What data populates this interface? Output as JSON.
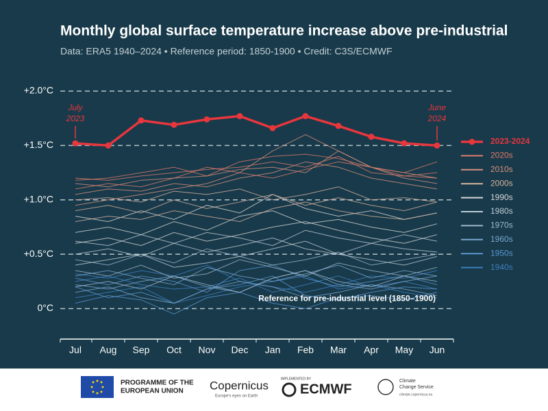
{
  "chart_data": {
    "type": "line",
    "title": "Monthly global surface temperature increase above pre-industrial",
    "subtitle": "Data: ERA5 1940–2024  •  Reference period: 1850-1900  •  Credit: C3S/ECMWF",
    "categories": [
      "Jul",
      "Aug",
      "Sep",
      "Oct",
      "Nov",
      "Dec",
      "Jan",
      "Feb",
      "Mar",
      "Apr",
      "May",
      "Jun"
    ],
    "ylim": [
      -0.28,
      2.0
    ],
    "yticks": [
      {
        "value": 2.0,
        "label": "+2.0°C"
      },
      {
        "value": 1.5,
        "label": "+1.5°C"
      },
      {
        "value": 1.0,
        "label": "+1.0°C"
      },
      {
        "value": 0.5,
        "label": "+0.5°C"
      },
      {
        "value": 0,
        "label": "0°C"
      }
    ],
    "grid": true,
    "legend": "right",
    "annotations": {
      "start": [
        "July",
        "2023"
      ],
      "end": [
        "June",
        "2024"
      ],
      "reference": "Reference for pre-industrial level (1850–1900)"
    },
    "series": [
      {
        "name": "2023-2024",
        "color": "#e8363d",
        "values": [
          1.52,
          1.5,
          1.73,
          1.69,
          1.74,
          1.77,
          1.66,
          1.77,
          1.68,
          1.58,
          1.52,
          1.5
        ]
      },
      {
        "name": "2020s",
        "color": "#e07a6a",
        "lines": [
          [
            1.2,
            1.18,
            1.22,
            1.25,
            1.28,
            1.3,
            1.35,
            1.3,
            1.4,
            1.25,
            1.22,
            1.2
          ],
          [
            1.1,
            1.15,
            1.12,
            1.2,
            1.3,
            1.25,
            1.2,
            1.28,
            1.35,
            1.3,
            1.25,
            1.35
          ],
          [
            1.18,
            1.2,
            1.25,
            1.3,
            1.22,
            1.35,
            1.4,
            1.42,
            1.38,
            1.3,
            1.22,
            1.25
          ]
        ]
      },
      {
        "name": "2010s",
        "color": "#d9917f",
        "lines": [
          [
            1.05,
            1.1,
            1.08,
            1.15,
            1.12,
            1.2,
            1.25,
            1.35,
            1.3,
            1.2,
            1.15,
            1.1
          ],
          [
            0.95,
            1.0,
            1.05,
            1.1,
            1.15,
            1.25,
            1.45,
            1.6,
            1.45,
            1.3,
            1.2,
            1.15
          ],
          [
            1.15,
            1.12,
            1.18,
            1.2,
            1.22,
            1.28,
            1.3,
            1.25,
            1.45,
            1.3,
            1.25,
            1.2
          ]
        ]
      },
      {
        "name": "2000s",
        "color": "#d8b3a0",
        "lines": [
          [
            0.9,
            0.95,
            0.88,
            1.0,
            0.92,
            0.98,
            1.05,
            0.95,
            1.02,
            0.95,
            0.9,
            0.98
          ],
          [
            0.8,
            0.85,
            0.82,
            0.9,
            0.85,
            0.8,
            0.92,
            0.98,
            0.9,
            0.85,
            0.82,
            0.88
          ],
          [
            1.0,
            1.02,
            0.98,
            1.08,
            1.05,
            1.1,
            1.0,
            1.05,
            1.12,
            1.0,
            1.02,
            0.98
          ]
        ]
      },
      {
        "name": "1990s",
        "color": "#d8d8d8",
        "lines": [
          [
            0.7,
            0.75,
            0.68,
            0.8,
            0.72,
            0.85,
            0.9,
            0.78,
            0.82,
            0.75,
            0.7,
            0.78
          ],
          [
            0.6,
            0.65,
            0.58,
            0.7,
            0.62,
            0.68,
            0.75,
            0.8,
            0.72,
            0.65,
            0.6,
            0.68
          ],
          [
            0.85,
            0.8,
            0.9,
            0.82,
            0.95,
            0.88,
            1.05,
            0.92,
            0.85,
            0.9,
            0.82,
            0.88
          ]
        ]
      },
      {
        "name": "1980s",
        "color": "#c0ccd6",
        "lines": [
          [
            0.5,
            0.55,
            0.48,
            0.6,
            0.52,
            0.58,
            0.65,
            0.55,
            0.5,
            0.6,
            0.55,
            0.52
          ],
          [
            0.4,
            0.45,
            0.5,
            0.38,
            0.42,
            0.48,
            0.55,
            0.62,
            0.5,
            0.45,
            0.4,
            0.48
          ],
          [
            0.62,
            0.58,
            0.68,
            0.6,
            0.7,
            0.65,
            0.58,
            0.72,
            0.65,
            0.6,
            0.68,
            0.62
          ]
        ]
      },
      {
        "name": "1970s",
        "color": "#9fb9cf",
        "lines": [
          [
            0.35,
            0.3,
            0.4,
            0.28,
            0.32,
            0.45,
            0.38,
            0.3,
            0.42,
            0.35,
            0.3,
            0.38
          ],
          [
            0.2,
            0.25,
            0.18,
            0.3,
            0.22,
            0.15,
            0.28,
            0.35,
            0.25,
            0.2,
            0.3,
            0.25
          ],
          [
            0.45,
            0.4,
            0.5,
            0.42,
            0.55,
            0.48,
            0.4,
            0.45,
            0.52,
            0.4,
            0.45,
            0.5
          ]
        ]
      },
      {
        "name": "1960s",
        "color": "#7aa7cf",
        "lines": [
          [
            0.22,
            0.18,
            0.25,
            0.3,
            0.2,
            0.15,
            0.28,
            0.35,
            0.22,
            0.18,
            0.25,
            0.3
          ],
          [
            0.15,
            0.2,
            0.1,
            0.05,
            0.18,
            0.25,
            0.2,
            0.1,
            0.15,
            0.22,
            0.18,
            0.12
          ],
          [
            0.3,
            0.35,
            0.28,
            0.22,
            0.38,
            0.3,
            0.25,
            0.32,
            0.4,
            0.28,
            0.35,
            0.3
          ]
        ]
      },
      {
        "name": "1950s",
        "color": "#5b95cf",
        "lines": [
          [
            0.2,
            0.1,
            0.15,
            0.05,
            0.18,
            0.22,
            0.3,
            0.12,
            0.08,
            0.15,
            0.2,
            0.18
          ],
          [
            0.05,
            0.12,
            0.08,
            -0.05,
            0.1,
            0.15,
            0.05,
            0.0,
            0.1,
            0.12,
            0.08,
            0.15
          ],
          [
            0.28,
            0.22,
            0.3,
            0.25,
            0.15,
            0.35,
            0.4,
            0.28,
            0.2,
            0.25,
            0.3,
            0.22
          ]
        ]
      },
      {
        "name": "1940s",
        "color": "#3f7fbf",
        "lines": [
          [
            0.25,
            0.3,
            0.22,
            0.18,
            0.2,
            0.28,
            0.15,
            0.22,
            0.3,
            0.2,
            0.25,
            0.18
          ],
          [
            0.1,
            0.15,
            0.2,
            0.05,
            0.12,
            0.2,
            0.25,
            0.3,
            0.18,
            0.22,
            0.15,
            0.1
          ],
          [
            0.32,
            0.28,
            0.35,
            0.3,
            0.4,
            0.25,
            0.2,
            0.15,
            0.22,
            0.3,
            0.28,
            0.35
          ]
        ]
      }
    ]
  },
  "footer": {
    "eu": [
      "PROGRAMME OF THE",
      "EUROPEAN UNION"
    ],
    "copernicus": "Copernicus",
    "copernicus_tagline": "Europe's eyes on Earth",
    "implemented": "IMPLEMENTED BY",
    "ecmwf": "ECMWF",
    "c3s": [
      "Climate",
      "Change Service"
    ],
    "c3s_url": "climate.copernicus.eu"
  }
}
